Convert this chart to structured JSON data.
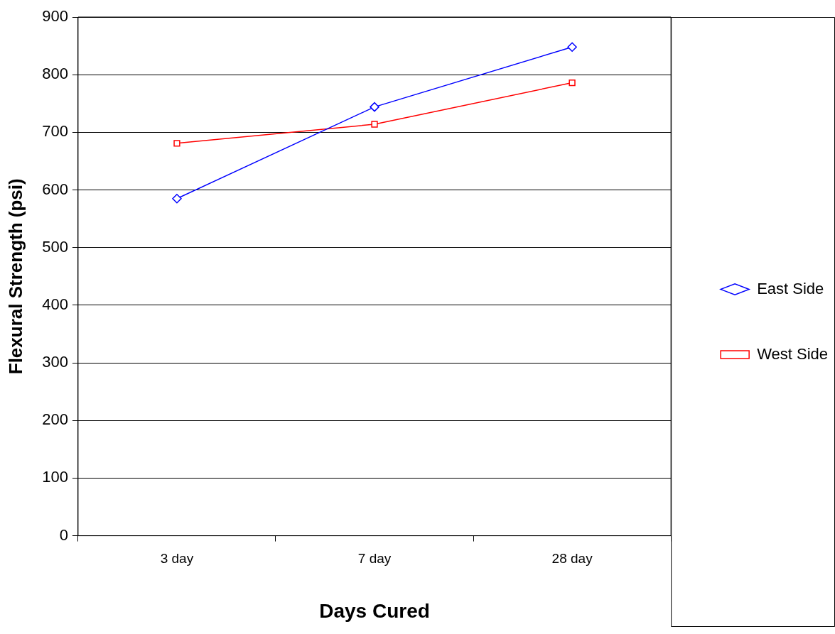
{
  "chart_data": {
    "type": "line",
    "xlabel": "Days Cured",
    "ylabel": "Flexural Strength (psi)",
    "categories": [
      "3 day",
      "7 day",
      "28 day"
    ],
    "series": [
      {
        "name": "East Side",
        "color": "#0000ff",
        "marker": "diamond",
        "values": [
          585,
          744,
          848
        ]
      },
      {
        "name": "West Side",
        "color": "#ff0000",
        "marker": "square",
        "values": [
          681,
          714,
          786
        ]
      }
    ],
    "ylim": [
      0,
      900
    ],
    "yticks": [
      0,
      100,
      200,
      300,
      400,
      500,
      600,
      700,
      800,
      900
    ],
    "grid": "y",
    "legend": "right",
    "line_style": "solid"
  }
}
